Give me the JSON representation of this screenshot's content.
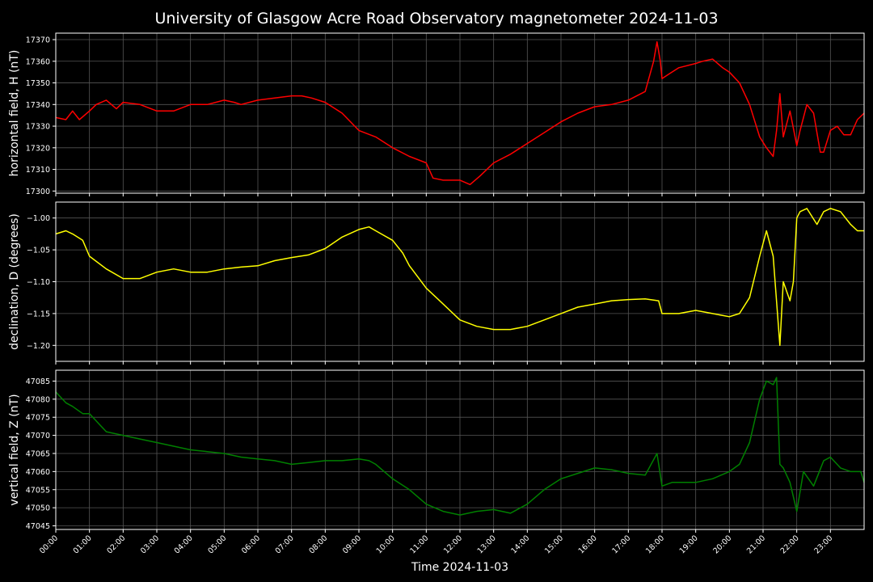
{
  "title": "University of Glasgow Acre Road Observatory magnetometer 2024-11-03",
  "xlabel": "Time 2024-11-03",
  "x_ticks": [
    "00:00",
    "01:00",
    "02:00",
    "03:00",
    "04:00",
    "05:00",
    "06:00",
    "07:00",
    "08:00",
    "09:00",
    "10:00",
    "11:00",
    "12:00",
    "13:00",
    "14:00",
    "15:00",
    "16:00",
    "17:00",
    "18:00",
    "19:00",
    "20:00",
    "21:00",
    "22:00",
    "23:00"
  ],
  "colors": {
    "background": "#000000",
    "grid": "#555555",
    "H": "#ff0000",
    "D": "#ffff00",
    "Z": "#008000"
  },
  "chart_data": [
    {
      "type": "line",
      "name": "H",
      "ylabel": "horizontal field, H (nT)",
      "xlim": [
        0,
        24
      ],
      "ylim": [
        17299,
        17373
      ],
      "yticks": [
        17300,
        17310,
        17320,
        17330,
        17340,
        17350,
        17360,
        17370
      ],
      "ytick_labels": [
        "17300",
        "17310",
        "17320",
        "17330",
        "17340",
        "17350",
        "17360",
        "17370"
      ],
      "grid": true,
      "x": [
        0,
        0.3,
        0.5,
        0.7,
        1.0,
        1.2,
        1.5,
        1.8,
        2.0,
        2.5,
        3.0,
        3.5,
        4.0,
        4.5,
        5.0,
        5.3,
        5.5,
        6.0,
        6.5,
        7.0,
        7.3,
        7.6,
        8.0,
        8.5,
        9.0,
        9.5,
        10.0,
        10.5,
        11.0,
        11.2,
        11.5,
        12.0,
        12.3,
        12.6,
        13.0,
        13.5,
        14.0,
        14.5,
        15.0,
        15.5,
        16.0,
        16.5,
        17.0,
        17.5,
        17.75,
        17.85,
        17.95,
        18.0,
        18.2,
        18.5,
        19.0,
        19.2,
        19.5,
        19.8,
        20.0,
        20.3,
        20.6,
        20.9,
        21.1,
        21.3,
        21.4,
        21.5,
        21.6,
        21.8,
        22.0,
        22.1,
        22.3,
        22.5,
        22.7,
        22.8,
        23.0,
        23.2,
        23.4,
        23.6,
        23.8,
        24.0
      ],
      "values": [
        17334,
        17333,
        17337,
        17333,
        17337,
        17340,
        17342,
        17338,
        17341,
        17340,
        17337,
        17337,
        17340,
        17340,
        17342,
        17341,
        17340,
        17342,
        17343,
        17344,
        17344,
        17343,
        17341,
        17336,
        17328,
        17325,
        17320,
        17316,
        17313,
        17306,
        17305,
        17305,
        17303,
        17307,
        17313,
        17317,
        17322,
        17327,
        17332,
        17336,
        17339,
        17340,
        17342,
        17346,
        17360,
        17369,
        17360,
        17352,
        17354,
        17357,
        17359,
        17360,
        17361,
        17357,
        17355,
        17350,
        17340,
        17325,
        17320,
        17316,
        17328,
        17345,
        17325,
        17337,
        17321,
        17328,
        17340,
        17336,
        17318,
        17318,
        17328,
        17330,
        17326,
        17326,
        17333,
        17336
      ]
    },
    {
      "type": "line",
      "name": "D",
      "ylabel": "declination, D (degrees)",
      "xlim": [
        0,
        24
      ],
      "ylim": [
        -1.225,
        -0.975
      ],
      "yticks": [
        -1.2,
        -1.15,
        -1.1,
        -1.05,
        -1.0
      ],
      "ytick_labels": [
        "−1.20",
        "−1.15",
        "−1.10",
        "−1.05",
        "−1.00"
      ],
      "grid": true,
      "x": [
        0,
        0.3,
        0.5,
        0.8,
        1.0,
        1.5,
        2.0,
        2.5,
        3.0,
        3.5,
        4.0,
        4.5,
        5.0,
        5.5,
        6.0,
        6.5,
        7.0,
        7.5,
        8.0,
        8.5,
        9.0,
        9.3,
        9.5,
        10.0,
        10.3,
        10.5,
        11.0,
        11.5,
        12.0,
        12.5,
        13.0,
        13.5,
        14.0,
        14.5,
        15.0,
        15.5,
        16.0,
        16.5,
        17.0,
        17.5,
        17.9,
        18.0,
        18.5,
        19.0,
        19.5,
        20.0,
        20.3,
        20.6,
        20.9,
        21.1,
        21.3,
        21.5,
        21.6,
        21.8,
        21.9,
        22.0,
        22.1,
        22.3,
        22.6,
        22.8,
        23.0,
        23.3,
        23.6,
        23.8,
        24.0
      ],
      "values": [
        -1.025,
        -1.02,
        -1.025,
        -1.035,
        -1.06,
        -1.08,
        -1.095,
        -1.095,
        -1.085,
        -1.08,
        -1.085,
        -1.085,
        -1.08,
        -1.077,
        -1.075,
        -1.067,
        -1.062,
        -1.058,
        -1.048,
        -1.03,
        -1.018,
        -1.014,
        -1.02,
        -1.035,
        -1.055,
        -1.075,
        -1.11,
        -1.135,
        -1.16,
        -1.17,
        -1.175,
        -1.175,
        -1.17,
        -1.16,
        -1.15,
        -1.14,
        -1.135,
        -1.13,
        -1.128,
        -1.127,
        -1.13,
        -1.15,
        -1.15,
        -1.145,
        -1.15,
        -1.155,
        -1.15,
        -1.125,
        -1.06,
        -1.02,
        -1.06,
        -1.2,
        -1.1,
        -1.13,
        -1.1,
        -1.0,
        -0.99,
        -0.985,
        -1.01,
        -0.99,
        -0.985,
        -0.99,
        -1.01,
        -1.02,
        -1.02
      ]
    },
    {
      "type": "line",
      "name": "Z",
      "ylabel": "vertical field, Z (nT)",
      "xlim": [
        0,
        24
      ],
      "ylim": [
        47044,
        47088
      ],
      "yticks": [
        47045,
        47050,
        47055,
        47060,
        47065,
        47070,
        47075,
        47080,
        47085
      ],
      "ytick_labels": [
        "47045",
        "47050",
        "47055",
        "47060",
        "47065",
        "47070",
        "47075",
        "47080",
        "47085"
      ],
      "grid": true,
      "x": [
        0,
        0.3,
        0.5,
        0.8,
        1.0,
        1.3,
        1.5,
        2.0,
        2.5,
        3.0,
        3.5,
        4.0,
        4.5,
        5.0,
        5.5,
        6.0,
        6.5,
        7.0,
        7.5,
        8.0,
        8.5,
        9.0,
        9.3,
        9.5,
        10.0,
        10.5,
        11.0,
        11.5,
        12.0,
        12.5,
        13.0,
        13.5,
        14.0,
        14.5,
        15.0,
        15.5,
        16.0,
        16.5,
        17.0,
        17.5,
        17.85,
        18.0,
        18.3,
        18.6,
        19.0,
        19.5,
        20.0,
        20.3,
        20.6,
        20.9,
        21.1,
        21.3,
        21.4,
        21.5,
        21.6,
        21.8,
        22.0,
        22.2,
        22.5,
        22.8,
        23.0,
        23.3,
        23.6,
        23.9,
        24.0
      ],
      "values": [
        47082,
        47079,
        47078,
        47076,
        47076,
        47073,
        47071,
        47070,
        47069,
        47068,
        47067,
        47066,
        47065.5,
        47065,
        47064,
        47063.5,
        47063,
        47062,
        47062.5,
        47063,
        47063,
        47063.5,
        47063,
        47062,
        47058,
        47055,
        47051,
        47049,
        47048,
        47049,
        47049.5,
        47048.5,
        47051,
        47055,
        47058,
        47059.5,
        47061,
        47060.5,
        47059.5,
        47059,
        47065,
        47056,
        47057,
        47057,
        47057,
        47058,
        47060,
        47062,
        47068,
        47080,
        47085,
        47084,
        47086,
        47062,
        47061,
        47057,
        47049,
        47060,
        47056,
        47063,
        47064,
        47061,
        47060,
        47060,
        47057
      ]
    }
  ]
}
